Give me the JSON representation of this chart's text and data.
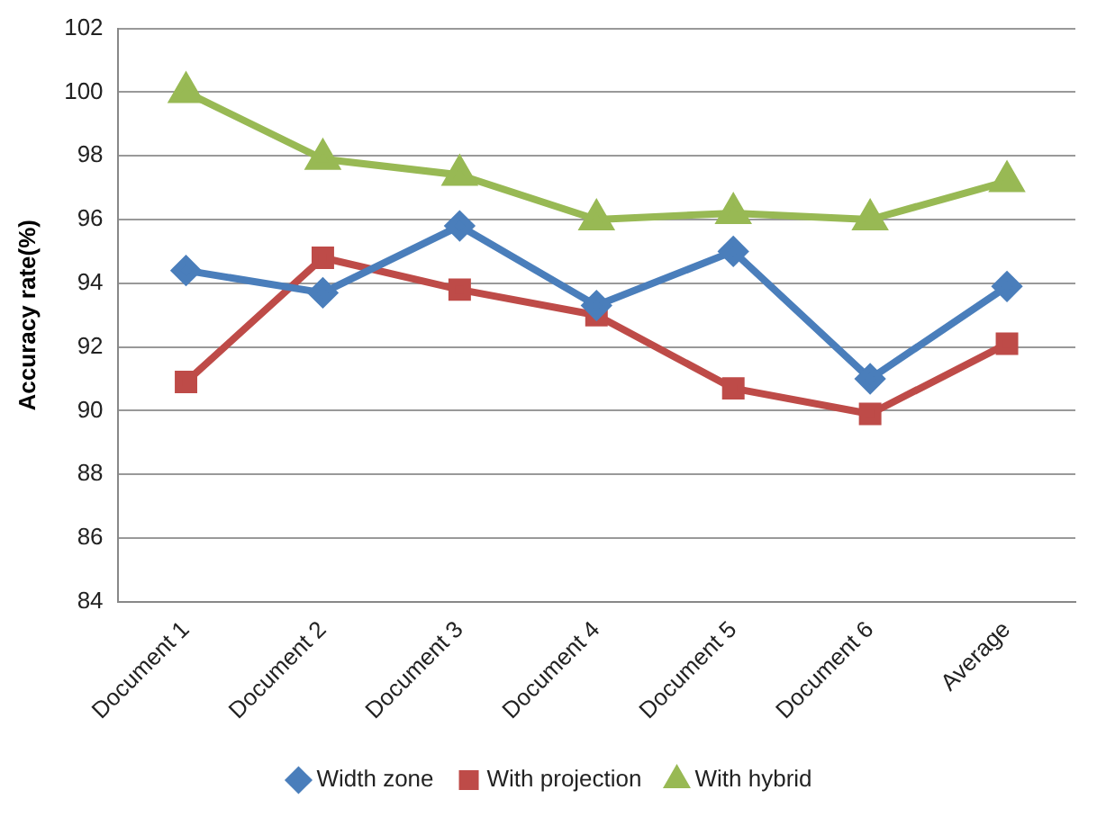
{
  "chart_data": {
    "type": "line",
    "ylabel": "Accuracy rate(%)",
    "categories": [
      "Document 1",
      "Document 2",
      "Document 3",
      "Document 4",
      "Document 5",
      "Document 6",
      "Average"
    ],
    "series": [
      {
        "name": "Width zone",
        "color": "#4a7ebb",
        "marker": "diamond",
        "values": [
          94.4,
          93.7,
          95.8,
          93.3,
          95.0,
          91.0,
          93.9
        ]
      },
      {
        "name": "With projection",
        "color": "#be4b48",
        "marker": "square",
        "values": [
          90.9,
          94.8,
          93.8,
          93.0,
          90.7,
          89.9,
          92.1
        ]
      },
      {
        "name": "With hybrid",
        "color": "#98b954",
        "marker": "triangle",
        "values": [
          100,
          97.9,
          97.4,
          96.0,
          96.2,
          96.0,
          97.2
        ]
      }
    ],
    "ylim": [
      84,
      102
    ],
    "yticks": [
      84,
      86,
      88,
      90,
      92,
      94,
      96,
      98,
      100,
      102
    ],
    "grid": "y",
    "legend": "bottom",
    "line_style": "solid"
  }
}
